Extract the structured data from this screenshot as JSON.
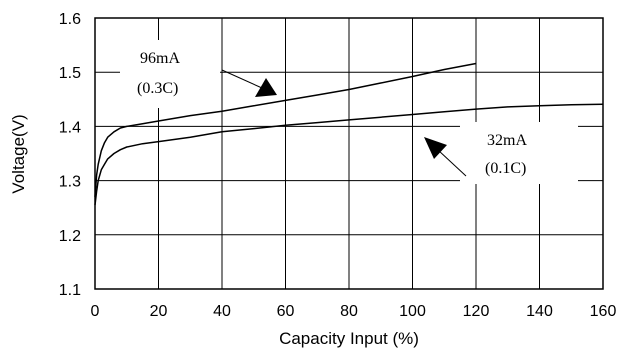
{
  "chart_data": {
    "type": "line",
    "xlabel": "Capacity Input (%)",
    "ylabel": "Voltage(V)",
    "xlim": [
      0,
      160
    ],
    "ylim": [
      1.1,
      1.6
    ],
    "x_ticks": [
      "0",
      "20",
      "40",
      "60",
      "80",
      "100",
      "120",
      "140",
      "160"
    ],
    "y_ticks": [
      "1.1",
      "1.2",
      "1.3",
      "1.4",
      "1.5",
      "1.6"
    ],
    "grid": true,
    "series": [
      {
        "name": "96mA (0.3C)",
        "x": [
          0,
          0.5,
          1,
          2,
          3,
          4,
          6,
          8,
          10,
          15,
          20,
          30,
          40,
          50,
          60,
          70,
          80,
          90,
          100,
          110,
          120
        ],
        "y": [
          1.27,
          1.31,
          1.33,
          1.355,
          1.37,
          1.38,
          1.39,
          1.397,
          1.4,
          1.405,
          1.41,
          1.42,
          1.428,
          1.438,
          1.448,
          1.458,
          1.468,
          1.48,
          1.492,
          1.505,
          1.516
        ]
      },
      {
        "name": "32mA (0.1C)",
        "x": [
          0,
          0.5,
          1,
          2,
          3,
          4,
          6,
          8,
          10,
          15,
          20,
          30,
          40,
          50,
          60,
          70,
          80,
          90,
          100,
          110,
          120,
          130,
          140,
          150,
          160
        ],
        "y": [
          1.255,
          1.28,
          1.3,
          1.32,
          1.33,
          1.34,
          1.35,
          1.357,
          1.362,
          1.368,
          1.372,
          1.38,
          1.39,
          1.396,
          1.402,
          1.407,
          1.412,
          1.417,
          1.422,
          1.427,
          1.432,
          1.436,
          1.438,
          1.44,
          1.441
        ]
      }
    ],
    "annotations": [
      {
        "line1": "96mA",
        "line2": "(0.3C)"
      },
      {
        "line1": "32mA",
        "line2": "(0.1C)"
      }
    ]
  }
}
